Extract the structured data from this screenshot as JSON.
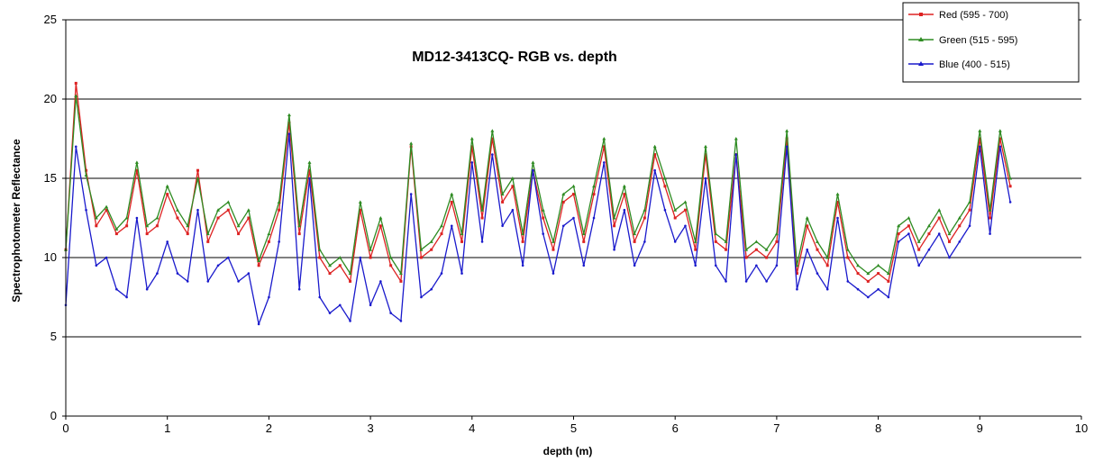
{
  "chart_data": {
    "type": "line",
    "title": "MD12-3413CQ- RGB vs. depth",
    "xlabel": "depth (m)",
    "ylabel": "Spectrophotometer Reflectance",
    "xlim": [
      0,
      10
    ],
    "ylim": [
      0,
      25
    ],
    "x_ticks": [
      "0",
      "1",
      "2",
      "3",
      "4",
      "5",
      "6",
      "7",
      "8",
      "9",
      "10"
    ],
    "y_ticks": [
      "0",
      "5",
      "10",
      "15",
      "20",
      "25"
    ],
    "grid": "horizontal",
    "legend_position": "top-right",
    "x": [
      0,
      0.1,
      0.2,
      0.3,
      0.4,
      0.5,
      0.6,
      0.7,
      0.8,
      0.9,
      1.0,
      1.1,
      1.2,
      1.3,
      1.4,
      1.5,
      1.6,
      1.7,
      1.8,
      1.9,
      2.0,
      2.1,
      2.2,
      2.3,
      2.4,
      2.5,
      2.6,
      2.7,
      2.8,
      2.9,
      3.0,
      3.1,
      3.2,
      3.3,
      3.4,
      3.5,
      3.6,
      3.7,
      3.8,
      3.9,
      4.0,
      4.1,
      4.2,
      4.3,
      4.4,
      4.5,
      4.6,
      4.7,
      4.8,
      4.9,
      5.0,
      5.1,
      5.2,
      5.3,
      5.4,
      5.5,
      5.6,
      5.7,
      5.8,
      5.9,
      6.0,
      6.1,
      6.2,
      6.3,
      6.4,
      6.5,
      6.6,
      6.7,
      6.8,
      6.9,
      7.0,
      7.1,
      7.2,
      7.3,
      7.4,
      7.5,
      7.6,
      7.7,
      7.8,
      7.9,
      8.0,
      8.1,
      8.2,
      8.3,
      8.4,
      8.5,
      8.6,
      8.7,
      8.8,
      8.9,
      9.0,
      9.1,
      9.2,
      9.3
    ],
    "series": [
      {
        "name": "Red (595 - 700)",
        "color": "#dd2222",
        "marker": "square",
        "values": [
          10.5,
          21.0,
          15.5,
          12.0,
          13.0,
          11.5,
          12.0,
          15.5,
          11.5,
          12.0,
          14.0,
          12.5,
          11.5,
          15.5,
          11.0,
          12.5,
          13.0,
          11.5,
          12.5,
          9.5,
          11.0,
          13.0,
          18.5,
          11.5,
          15.5,
          10.0,
          9.0,
          9.5,
          8.5,
          13.0,
          10.0,
          12.0,
          9.5,
          8.5,
          17.0,
          10.0,
          10.5,
          11.5,
          13.5,
          11.0,
          17.0,
          12.5,
          17.5,
          13.5,
          14.5,
          11.0,
          15.5,
          12.5,
          10.5,
          13.5,
          14.0,
          11.0,
          14.0,
          17.0,
          12.0,
          14.0,
          11.0,
          12.5,
          16.5,
          14.5,
          12.5,
          13.0,
          10.5,
          16.5,
          11.0,
          10.5,
          16.5,
          10.0,
          10.5,
          10.0,
          11.0,
          17.5,
          9.0,
          12.0,
          10.5,
          9.5,
          13.5,
          10.0,
          9.0,
          8.5,
          9.0,
          8.5,
          11.5,
          12.0,
          10.5,
          11.5,
          12.5,
          11.0,
          12.0,
          13.0,
          17.5,
          12.5,
          17.5,
          14.5
        ]
      },
      {
        "name": "Green (515 - 595)",
        "color": "#2e8b22",
        "marker": "triangle",
        "values": [
          10.5,
          20.2,
          15.2,
          12.5,
          13.2,
          11.8,
          12.5,
          16.0,
          12.0,
          12.5,
          14.5,
          13.0,
          12.0,
          15.0,
          11.5,
          13.0,
          13.5,
          12.0,
          13.0,
          9.8,
          11.5,
          13.5,
          19.0,
          12.0,
          16.0,
          10.5,
          9.5,
          10.0,
          9.0,
          13.5,
          10.5,
          12.5,
          10.0,
          9.0,
          17.2,
          10.5,
          11.0,
          12.0,
          14.0,
          11.5,
          17.5,
          13.0,
          18.0,
          14.0,
          15.0,
          11.5,
          16.0,
          13.0,
          11.0,
          14.0,
          14.5,
          11.5,
          14.5,
          17.5,
          12.5,
          14.5,
          11.5,
          13.0,
          17.0,
          15.0,
          13.0,
          13.5,
          11.0,
          17.0,
          11.5,
          11.0,
          17.5,
          10.5,
          11.0,
          10.5,
          11.5,
          18.0,
          9.5,
          12.5,
          11.0,
          10.0,
          14.0,
          10.5,
          9.5,
          9.0,
          9.5,
          9.0,
          12.0,
          12.5,
          11.0,
          12.0,
          13.0,
          11.5,
          12.5,
          13.5,
          18.0,
          13.0,
          18.0,
          15.0
        ]
      },
      {
        "name": "Blue (400 - 515)",
        "color": "#1a1acc",
        "marker": "circle",
        "values": [
          7.0,
          17.0,
          13.0,
          9.5,
          10.0,
          8.0,
          7.5,
          12.5,
          8.0,
          9.0,
          11.0,
          9.0,
          8.5,
          13.0,
          8.5,
          9.5,
          10.0,
          8.5,
          9.0,
          5.8,
          7.5,
          11.0,
          17.8,
          8.0,
          15.0,
          7.5,
          6.5,
          7.0,
          6.0,
          10.0,
          7.0,
          8.5,
          6.5,
          6.0,
          14.0,
          7.5,
          8.0,
          9.0,
          12.0,
          9.0,
          16.0,
          11.0,
          16.5,
          12.0,
          13.0,
          9.5,
          15.5,
          11.5,
          9.0,
          12.0,
          12.5,
          9.5,
          12.5,
          16.0,
          10.5,
          13.0,
          9.5,
          11.0,
          15.5,
          13.0,
          11.0,
          12.0,
          9.5,
          15.0,
          9.5,
          8.5,
          16.5,
          8.5,
          9.5,
          8.5,
          9.5,
          17.0,
          8.0,
          10.5,
          9.0,
          8.0,
          12.5,
          8.5,
          8.0,
          7.5,
          8.0,
          7.5,
          11.0,
          11.5,
          9.5,
          10.5,
          11.5,
          10.0,
          11.0,
          12.0,
          17.0,
          11.5,
          17.0,
          13.5
        ]
      }
    ]
  }
}
